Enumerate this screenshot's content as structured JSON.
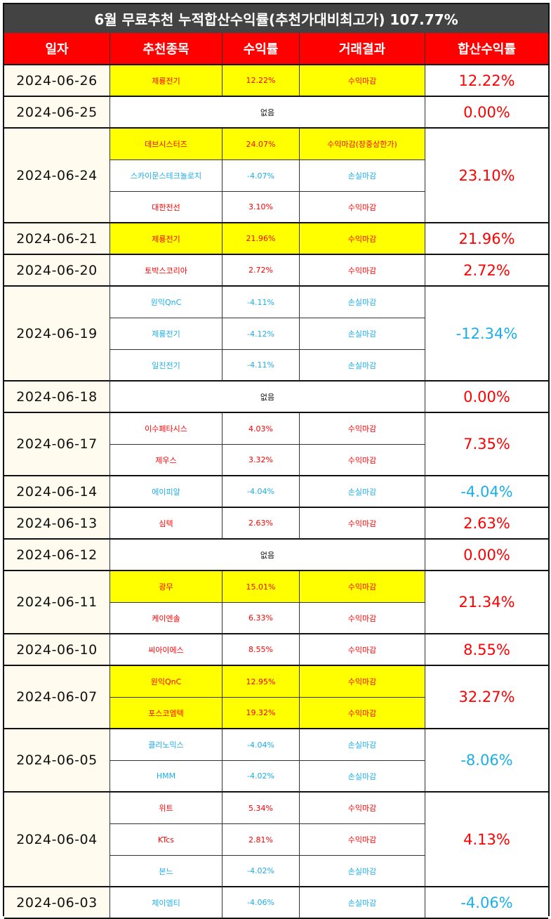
{
  "title": "6월 무료추천 누적합산수익률(추천가대비최고가) 107.77%",
  "headers": [
    "일자",
    "추천종목",
    "수익률",
    "거래결과",
    "합산수익률"
  ],
  "colors": {
    "profit": "#ff0000",
    "loss": "#1aaeea",
    "highlight": "#ffff00",
    "header_bg": "#fe0000",
    "title_bg": "#434343"
  },
  "days": [
    {
      "date": "2024-06-26",
      "total": "12.22%",
      "total_color": "red",
      "stocks": [
        {
          "name": "제룡전기",
          "rate": "12.22%",
          "result": "수익마감",
          "color": "red",
          "highlight": true
        }
      ]
    },
    {
      "date": "2024-06-25",
      "total": "0.00%",
      "total_color": "red",
      "none": "없음",
      "stocks": []
    },
    {
      "date": "2024-06-24",
      "total": "23.10%",
      "total_color": "red",
      "stocks": [
        {
          "name": "데브시스터즈",
          "rate": "24.07%",
          "result": "수익마감(장중상한가)",
          "color": "red",
          "highlight": true
        },
        {
          "name": "스카이문스테크놀로지",
          "rate": "-4.07%",
          "result": "손실마감",
          "color": "blue",
          "highlight": false
        },
        {
          "name": "대한전선",
          "rate": "3.10%",
          "result": "수익마감",
          "color": "red",
          "highlight": false
        }
      ]
    },
    {
      "date": "2024-06-21",
      "total": "21.96%",
      "total_color": "red",
      "stocks": [
        {
          "name": "제룡전기",
          "rate": "21.96%",
          "result": "수익마감",
          "color": "red",
          "highlight": true
        }
      ]
    },
    {
      "date": "2024-06-20",
      "total": "2.72%",
      "total_color": "red",
      "stocks": [
        {
          "name": "토박스코리아",
          "rate": "2.72%",
          "result": "수익마감",
          "color": "red",
          "highlight": false
        }
      ]
    },
    {
      "date": "2024-06-19",
      "total": "-12.34%",
      "total_color": "blue",
      "stocks": [
        {
          "name": "원익QnC",
          "rate": "-4.11%",
          "result": "손실마감",
          "color": "blue",
          "highlight": false
        },
        {
          "name": "제룡전기",
          "rate": "-4.12%",
          "result": "손실마감",
          "color": "blue",
          "highlight": false
        },
        {
          "name": "일진전기",
          "rate": "-4.11%",
          "result": "손실마감",
          "color": "blue",
          "highlight": false
        }
      ]
    },
    {
      "date": "2024-06-18",
      "total": "0.00%",
      "total_color": "red",
      "none": "없음",
      "stocks": []
    },
    {
      "date": "2024-06-17",
      "total": "7.35%",
      "total_color": "red",
      "stocks": [
        {
          "name": "이수페타시스",
          "rate": "4.03%",
          "result": "수익마감",
          "color": "red",
          "highlight": false
        },
        {
          "name": "제우스",
          "rate": "3.32%",
          "result": "수익마감",
          "color": "red",
          "highlight": false
        }
      ]
    },
    {
      "date": "2024-06-14",
      "total": "-4.04%",
      "total_color": "blue",
      "stocks": [
        {
          "name": "에이피알",
          "rate": "-4.04%",
          "result": "손실마감",
          "color": "blue",
          "highlight": false
        }
      ]
    },
    {
      "date": "2024-06-13",
      "total": "2.63%",
      "total_color": "red",
      "stocks": [
        {
          "name": "심텍",
          "rate": "2.63%",
          "result": "수익마감",
          "color": "red",
          "highlight": false
        }
      ]
    },
    {
      "date": "2024-06-12",
      "total": "0.00%",
      "total_color": "red",
      "none": "없음",
      "stocks": []
    },
    {
      "date": "2024-06-11",
      "total": "21.34%",
      "total_color": "red",
      "stocks": [
        {
          "name": "광무",
          "rate": "15.01%",
          "result": "수익마감",
          "color": "red",
          "highlight": true
        },
        {
          "name": "케이엔솔",
          "rate": "6.33%",
          "result": "수익마감",
          "color": "red",
          "highlight": false
        }
      ]
    },
    {
      "date": "2024-06-10",
      "total": "8.55%",
      "total_color": "red",
      "stocks": [
        {
          "name": "씨아이에스",
          "rate": "8.55%",
          "result": "수익마감",
          "color": "red",
          "highlight": false
        }
      ]
    },
    {
      "date": "2024-06-07",
      "total": "32.27%",
      "total_color": "red",
      "stocks": [
        {
          "name": "원익QnC",
          "rate": "12.95%",
          "result": "수익마감",
          "color": "red",
          "highlight": true
        },
        {
          "name": "포스코엠텍",
          "rate": "19.32%",
          "result": "수익마감",
          "color": "red",
          "highlight": true
        }
      ]
    },
    {
      "date": "2024-06-05",
      "total": "-8.06%",
      "total_color": "blue",
      "stocks": [
        {
          "name": "클리노믹스",
          "rate": "-4.04%",
          "result": "손실마감",
          "color": "blue",
          "highlight": false
        },
        {
          "name": "HMM",
          "rate": "-4.02%",
          "result": "손실마감",
          "color": "blue",
          "highlight": false
        }
      ]
    },
    {
      "date": "2024-06-04",
      "total": "4.13%",
      "total_color": "red",
      "stocks": [
        {
          "name": "위트",
          "rate": "5.34%",
          "result": "수익마감",
          "color": "red",
          "highlight": false
        },
        {
          "name": "KTcs",
          "rate": "2.81%",
          "result": "수익마감",
          "color": "red",
          "highlight": false
        },
        {
          "name": "본느",
          "rate": "-4.02%",
          "result": "손실마감",
          "color": "blue",
          "highlight": false
        }
      ]
    },
    {
      "date": "2024-06-03",
      "total": "-4.06%",
      "total_color": "blue",
      "stocks": [
        {
          "name": "제이엠티",
          "rate": "-4.06%",
          "result": "손실마감",
          "color": "blue",
          "highlight": false
        }
      ]
    }
  ]
}
